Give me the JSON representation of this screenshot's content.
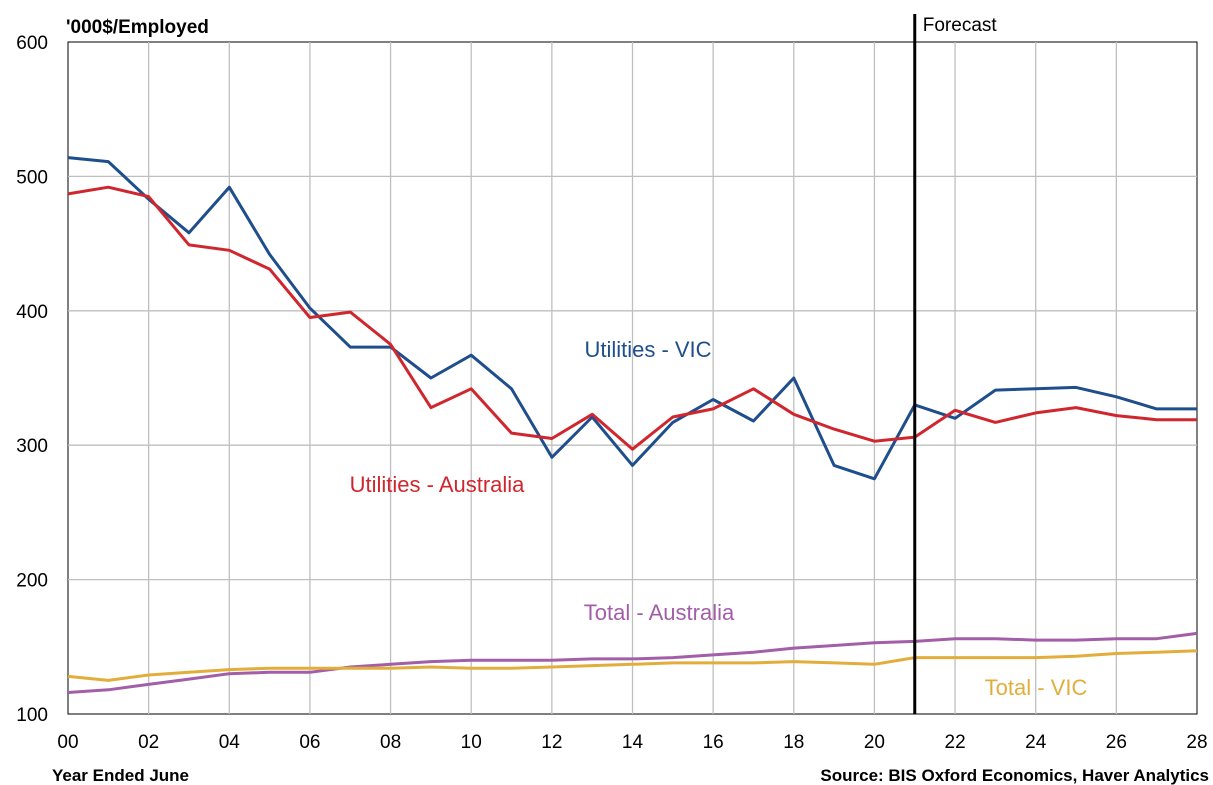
{
  "chart_data": {
    "type": "line",
    "ylabel": "'000$/Employed",
    "xlabel": "Year Ended June",
    "source": "Source: BIS Oxford Economics, Haver Analytics",
    "forecast_label": "Forecast",
    "forecast_x": 21,
    "xlim": [
      0,
      28
    ],
    "ylim": [
      100,
      600
    ],
    "yticks": [
      100,
      200,
      300,
      400,
      500,
      600
    ],
    "xticks": [
      0,
      2,
      4,
      6,
      8,
      10,
      12,
      14,
      16,
      18,
      20,
      22,
      24,
      26,
      28
    ],
    "xtick_labels": [
      "00",
      "02",
      "04",
      "06",
      "08",
      "10",
      "12",
      "14",
      "16",
      "18",
      "20",
      "22",
      "24",
      "26",
      "28"
    ],
    "grid": true,
    "x": [
      0,
      1,
      2,
      3,
      4,
      5,
      6,
      7,
      8,
      9,
      10,
      11,
      12,
      13,
      14,
      15,
      16,
      17,
      18,
      19,
      20,
      21,
      22,
      23,
      24,
      25,
      26,
      27,
      28
    ],
    "series": [
      {
        "name": "Utilities - VIC",
        "color": "#1f4e8c",
        "values": [
          514,
          511,
          483,
          458,
          492,
          442,
          402,
          373,
          373,
          350,
          367,
          342,
          291,
          321,
          285,
          317,
          334,
          318,
          350,
          285,
          275,
          330,
          320,
          341,
          342,
          343,
          336,
          327,
          327
        ]
      },
      {
        "name": "Utilities - Australia",
        "color": "#d0262e",
        "values": [
          487,
          492,
          485,
          449,
          445,
          431,
          395,
          399,
          375,
          328,
          342,
          309,
          305,
          323,
          297,
          321,
          327,
          342,
          323,
          312,
          303,
          306,
          326,
          317,
          324,
          328,
          322,
          319,
          319
        ]
      },
      {
        "name": "Total - Australia",
        "color": "#a35ea8",
        "values": [
          116,
          118,
          122,
          126,
          130,
          131,
          131,
          135,
          137,
          139,
          140,
          140,
          140,
          141,
          141,
          142,
          144,
          146,
          149,
          151,
          153,
          154,
          156,
          156,
          155,
          155,
          156,
          156,
          160
        ]
      },
      {
        "name": "Total - VIC",
        "color": "#e3ad3c",
        "values": [
          128,
          125,
          129,
          131,
          133,
          134,
          134,
          134,
          134,
          135,
          134,
          134,
          135,
          136,
          137,
          138,
          138,
          138,
          139,
          138,
          137,
          142,
          142,
          142,
          142,
          143,
          145,
          146,
          147
        ]
      }
    ]
  }
}
